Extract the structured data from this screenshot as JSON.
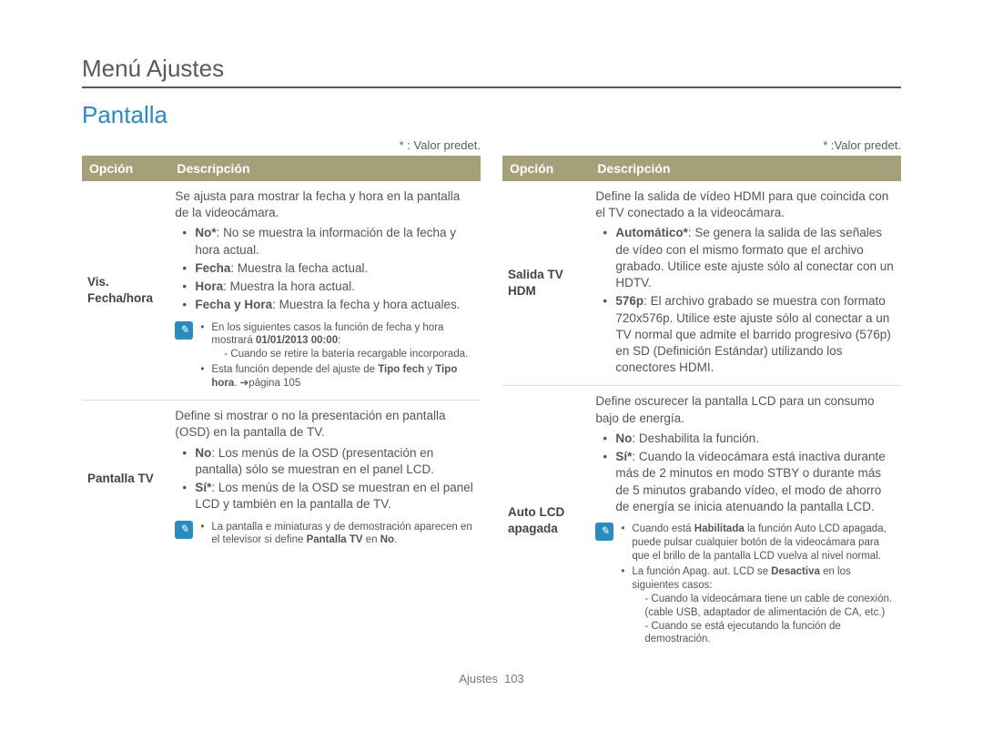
{
  "page": {
    "title": "Menú Ajustes",
    "section": "Pantalla",
    "footer_label": "Ajustes",
    "footer_page": "103"
  },
  "defaultLegend": "* : Valor predet.",
  "defaultLegend2": "* :Valor predet.",
  "headers": {
    "opcion": "Opción",
    "descripcion": "Descripción"
  },
  "left": [
    {
      "opcion": "Vis. Fecha/hora",
      "intro": "Se ajusta para mostrar la fecha y hora en la pantalla de la videocámara.",
      "bullets": [
        {
          "b": "No*",
          "t": ": No se muestra la información de la fecha y hora actual."
        },
        {
          "b": "Fecha",
          "t": ": Muestra la fecha actual."
        },
        {
          "b": "Hora",
          "t": ": Muestra la hora actual."
        },
        {
          "b": "Fecha y Hora",
          "t": ": Muestra la fecha y hora actuales."
        }
      ],
      "note": [
        {
          "pre": "En los siguientes casos la función de fecha y hora mostrará ",
          "b": "01/01/2013 00:00",
          "post": ":",
          "sub": "- Cuando se retire la batería recargable incorporada."
        },
        {
          "pre": "Esta función depende del ajuste de ",
          "b": "Tipo fech",
          "mid": " y ",
          "b2": "Tipo hora",
          "post": ". ➔página 105"
        }
      ]
    },
    {
      "opcion": "Pantalla TV",
      "intro": "Define si mostrar o no la presentación en pantalla (OSD) en la pantalla de TV.",
      "bullets": [
        {
          "b": "No",
          "t": ": Los menús de la OSD (presentación en pantalla) sólo se muestran en el panel LCD."
        },
        {
          "b": "Sí*",
          "t": ": Los menús de la OSD se muestran en el panel LCD y también en la pantalla de TV."
        }
      ],
      "note": [
        {
          "pre": "La pantalla e miniaturas y de demostración aparecen en el televisor si define ",
          "b": "Pantalla TV",
          "mid": " en ",
          "b2": "No",
          "post": "."
        }
      ]
    }
  ],
  "right": [
    {
      "opcion": "Salida TV HDM",
      "intro": "Define la salida de vídeo HDMI para que coincida con el TV conectado a la videocámara.",
      "bullets": [
        {
          "b": "Automático*",
          "t": ": Se genera la salida de las señales de vídeo con el mismo formato que el archivo grabado. Utilice este ajuste sólo al conectar con un HDTV."
        },
        {
          "b": "576p",
          "t": ": El archivo grabado se muestra con formato 720x576p. Utilice este ajuste sólo al conectar a un TV normal que admite el barrido progresivo (576p) en SD (Definición Estándar) utilizando los conectores HDMI."
        }
      ]
    },
    {
      "opcion": "Auto LCD apagada",
      "intro": "Define oscurecer la pantalla LCD para un consumo bajo de energía.",
      "bullets": [
        {
          "b": "No",
          "t": ": Deshabilita la función."
        },
        {
          "b": "Sí*",
          "t": ": Cuando la videocámara está inactiva durante más de 2 minutos en modo STBY o durante más de 5 minutos grabando vídeo, el modo de ahorro de energía se inicia atenuando la pantalla LCD."
        }
      ],
      "note": [
        {
          "pre": "Cuando está ",
          "b": "Habilitada",
          "post": " la función Auto LCD apagada, puede pulsar cualquier botón de la videocámara para que el brillo de la pantalla LCD vuelva al nivel normal."
        },
        {
          "pre": "La función Apag. aut. LCD se ",
          "b": "Desactiva",
          "post": " en los siguientes casos:",
          "subs": [
            "- Cuando la videocámara tiene un cable de conexión. (cable USB, adaptador de alimentación de CA, etc.)",
            "- Cuando se está ejecutando la función de demostración."
          ]
        }
      ]
    }
  ]
}
